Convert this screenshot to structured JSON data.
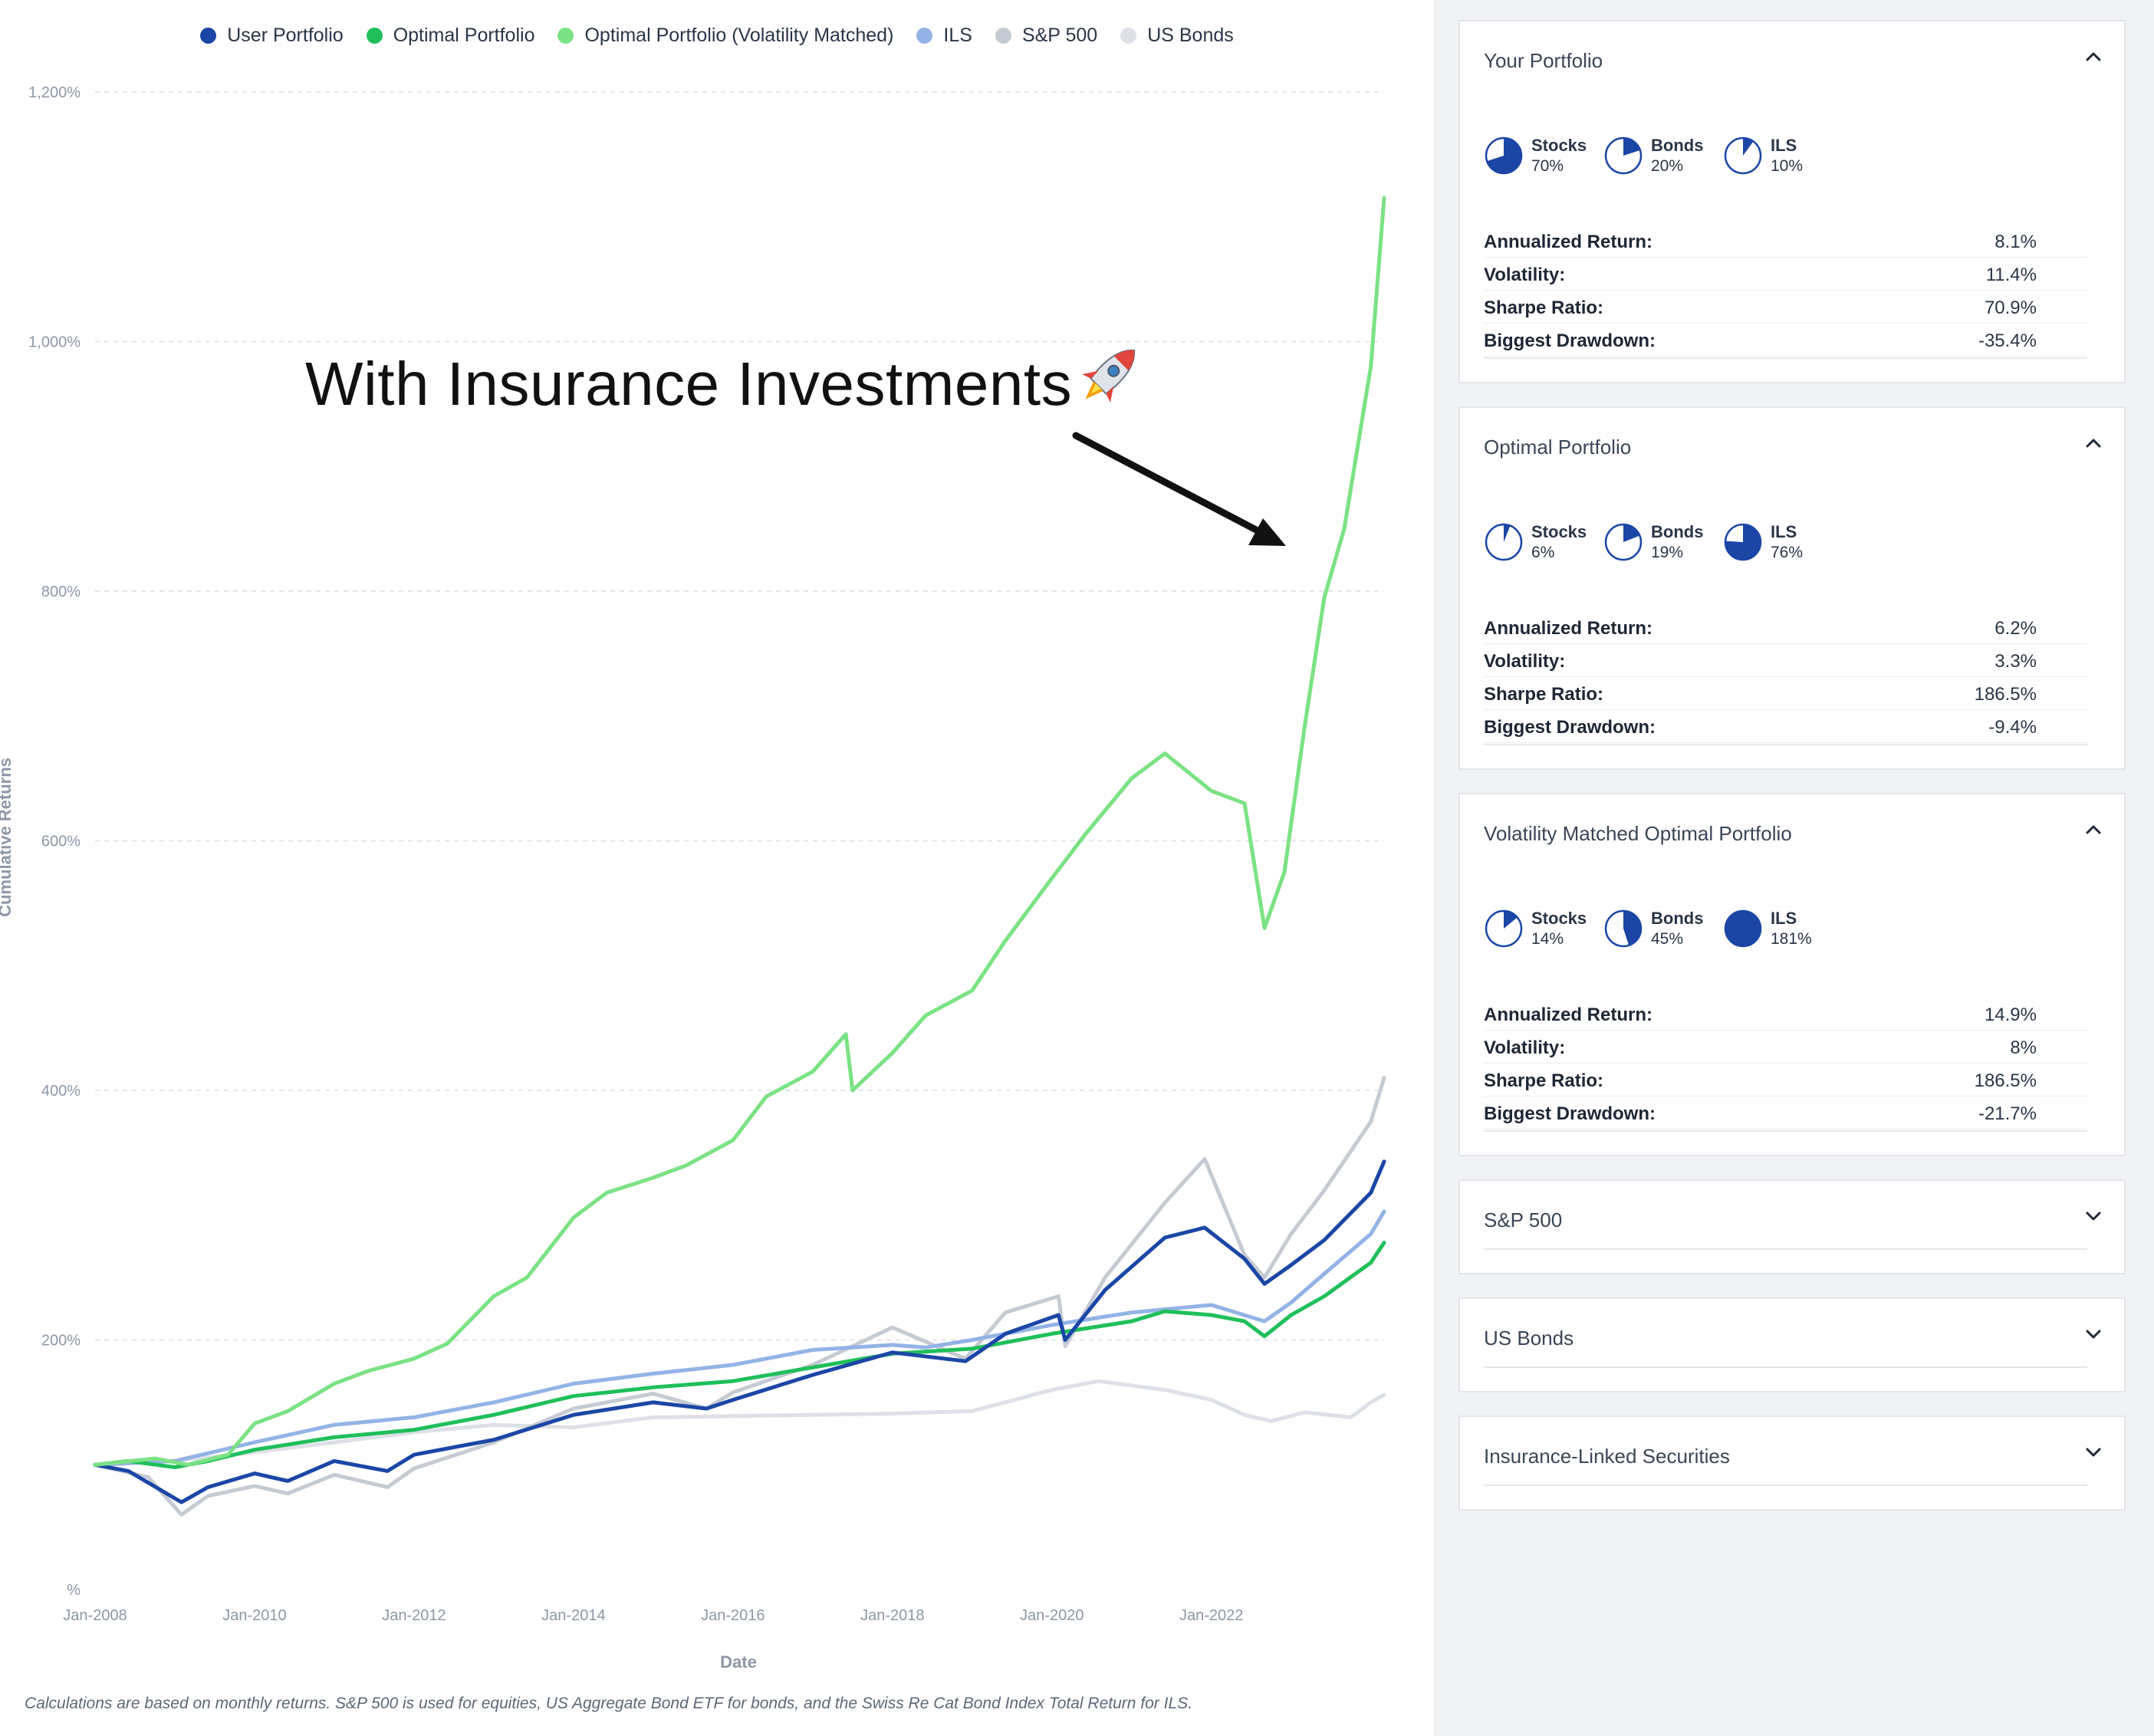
{
  "legend": [
    {
      "name": "User Portfolio",
      "color": "#1b46a6"
    },
    {
      "name": "Optimal Portfolio",
      "color": "#1fbf5a"
    },
    {
      "name": "Optimal Portfolio (Volatility Matched)",
      "color": "#7be284"
    },
    {
      "name": "ILS",
      "color": "#93b3e6"
    },
    {
      "name": "S&P 500",
      "color": "#c5cad3"
    },
    {
      "name": "US Bonds",
      "color": "#dde0e6"
    }
  ],
  "annotation": {
    "text": "With Insurance Investments",
    "icon": "rocket-icon"
  },
  "footnote": "Calculations are based on monthly returns. S&P 500 is used for equities, US Aggregate Bond ETF for bonds, and the Swiss Re Cat Bond Index Total Return for ILS.",
  "chart_data": {
    "type": "line",
    "xlabel": "Date",
    "ylabel": "Cumulative Returns",
    "ylim": [
      0,
      1200
    ],
    "xlim": [
      "2008-01",
      "2024-03"
    ],
    "y_ticks": [
      0,
      200,
      400,
      600,
      800,
      1000,
      1200
    ],
    "y_tick_labels": [
      "%",
      "200%",
      "400%",
      "600%",
      "800%",
      "1,000%",
      "1,200%"
    ],
    "x_tick_labels": [
      "Jan-2008",
      "Jan-2010",
      "Jan-2012",
      "Jan-2014",
      "Jan-2016",
      "Jan-2018",
      "Jan-2020",
      "Jan-2022"
    ],
    "grid": "horizontal dashed",
    "legend_position": "top",
    "series": [
      {
        "name": "Optimal Portfolio (Volatility Matched)",
        "color": "#7be284",
        "points": [
          [
            "2008-01",
            100
          ],
          [
            "2008-10",
            105
          ],
          [
            "2009-03",
            100
          ],
          [
            "2009-09",
            108
          ],
          [
            "2010-01",
            133
          ],
          [
            "2010-06",
            143
          ],
          [
            "2011-01",
            165
          ],
          [
            "2011-06",
            175
          ],
          [
            "2012-01",
            185
          ],
          [
            "2012-06",
            197
          ],
          [
            "2013-01",
            235
          ],
          [
            "2013-06",
            250
          ],
          [
            "2014-01",
            298
          ],
          [
            "2014-06",
            318
          ],
          [
            "2015-01",
            330
          ],
          [
            "2015-06",
            340
          ],
          [
            "2016-01",
            360
          ],
          [
            "2016-06",
            395
          ],
          [
            "2017-01",
            415
          ],
          [
            "2017-06",
            445
          ],
          [
            "2017-07",
            400
          ],
          [
            "2018-01",
            430
          ],
          [
            "2018-06",
            460
          ],
          [
            "2019-01",
            480
          ],
          [
            "2019-06",
            520
          ],
          [
            "2020-01",
            570
          ],
          [
            "2020-06",
            605
          ],
          [
            "2021-01",
            650
          ],
          [
            "2021-06",
            670
          ],
          [
            "2022-01",
            640
          ],
          [
            "2022-06",
            630
          ],
          [
            "2022-09",
            530
          ],
          [
            "2022-12",
            575
          ],
          [
            "2023-03",
            690
          ],
          [
            "2023-06",
            795
          ],
          [
            "2023-09",
            850
          ],
          [
            "2024-01",
            980
          ],
          [
            "2024-03",
            1115
          ]
        ]
      },
      {
        "name": "Optimal Portfolio",
        "color": "#1fbf5a",
        "points": [
          [
            "2008-01",
            100
          ],
          [
            "2008-06",
            103
          ],
          [
            "2009-01",
            98
          ],
          [
            "2009-06",
            103
          ],
          [
            "2010-01",
            112
          ],
          [
            "2011-01",
            122
          ],
          [
            "2012-01",
            128
          ],
          [
            "2013-01",
            140
          ],
          [
            "2014-01",
            155
          ],
          [
            "2015-01",
            162
          ],
          [
            "2016-01",
            167
          ],
          [
            "2017-01",
            178
          ],
          [
            "2018-01",
            189
          ],
          [
            "2019-01",
            193
          ],
          [
            "2020-01",
            205
          ],
          [
            "2021-01",
            215
          ],
          [
            "2021-06",
            223
          ],
          [
            "2022-01",
            220
          ],
          [
            "2022-06",
            215
          ],
          [
            "2022-09",
            203
          ],
          [
            "2023-01",
            220
          ],
          [
            "2023-06",
            235
          ],
          [
            "2024-01",
            262
          ],
          [
            "2024-03",
            278
          ]
        ]
      },
      {
        "name": "ILS",
        "color": "#93b3e6",
        "points": [
          [
            "2008-01",
            100
          ],
          [
            "2009-01",
            103
          ],
          [
            "2010-01",
            118
          ],
          [
            "2011-01",
            132
          ],
          [
            "2012-01",
            138
          ],
          [
            "2013-01",
            150
          ],
          [
            "2014-01",
            165
          ],
          [
            "2015-01",
            173
          ],
          [
            "2016-01",
            180
          ],
          [
            "2017-01",
            192
          ],
          [
            "2018-01",
            196
          ],
          [
            "2018-06",
            194
          ],
          [
            "2019-01",
            200
          ],
          [
            "2020-01",
            212
          ],
          [
            "2021-01",
            222
          ],
          [
            "2022-01",
            228
          ],
          [
            "2022-09",
            215
          ],
          [
            "2023-01",
            230
          ],
          [
            "2023-06",
            253
          ],
          [
            "2024-01",
            285
          ],
          [
            "2024-03",
            303
          ]
        ]
      },
      {
        "name": "User Portfolio",
        "color": "#1b46a6",
        "points": [
          [
            "2008-01",
            100
          ],
          [
            "2008-06",
            95
          ],
          [
            "2009-02",
            70
          ],
          [
            "2009-06",
            82
          ],
          [
            "2010-01",
            93
          ],
          [
            "2010-06",
            87
          ],
          [
            "2011-01",
            103
          ],
          [
            "2011-09",
            95
          ],
          [
            "2012-01",
            108
          ],
          [
            "2013-01",
            120
          ],
          [
            "2014-01",
            140
          ],
          [
            "2015-01",
            150
          ],
          [
            "2015-09",
            145
          ],
          [
            "2016-01",
            152
          ],
          [
            "2017-01",
            172
          ],
          [
            "2018-01",
            190
          ],
          [
            "2018-12",
            183
          ],
          [
            "2019-06",
            205
          ],
          [
            "2020-02",
            220
          ],
          [
            "2020-03",
            200
          ],
          [
            "2020-09",
            240
          ],
          [
            "2021-06",
            282
          ],
          [
            "2021-12",
            290
          ],
          [
            "2022-06",
            265
          ],
          [
            "2022-09",
            245
          ],
          [
            "2023-01",
            260
          ],
          [
            "2023-06",
            280
          ],
          [
            "2024-01",
            318
          ],
          [
            "2024-03",
            343
          ]
        ]
      },
      {
        "name": "S&P 500",
        "color": "#c5cad3",
        "points": [
          [
            "2008-01",
            100
          ],
          [
            "2008-09",
            90
          ],
          [
            "2009-02",
            60
          ],
          [
            "2009-06",
            75
          ],
          [
            "2010-01",
            83
          ],
          [
            "2010-06",
            77
          ],
          [
            "2011-01",
            92
          ],
          [
            "2011-09",
            82
          ],
          [
            "2012-01",
            97
          ],
          [
            "2013-01",
            118
          ],
          [
            "2014-01",
            145
          ],
          [
            "2015-01",
            157
          ],
          [
            "2015-09",
            145
          ],
          [
            "2016-01",
            158
          ],
          [
            "2017-01",
            180
          ],
          [
            "2018-01",
            210
          ],
          [
            "2018-12",
            185
          ],
          [
            "2019-06",
            222
          ],
          [
            "2020-02",
            235
          ],
          [
            "2020-03",
            195
          ],
          [
            "2020-09",
            250
          ],
          [
            "2021-06",
            310
          ],
          [
            "2021-12",
            345
          ],
          [
            "2022-06",
            268
          ],
          [
            "2022-09",
            250
          ],
          [
            "2023-01",
            285
          ],
          [
            "2023-06",
            320
          ],
          [
            "2024-01",
            375
          ],
          [
            "2024-03",
            410
          ]
        ]
      },
      {
        "name": "US Bonds",
        "color": "#dde0e6",
        "points": [
          [
            "2008-01",
            100
          ],
          [
            "2009-01",
            103
          ],
          [
            "2010-01",
            110
          ],
          [
            "2011-01",
            118
          ],
          [
            "2012-01",
            126
          ],
          [
            "2013-01",
            132
          ],
          [
            "2014-01",
            130
          ],
          [
            "2015-01",
            138
          ],
          [
            "2016-01",
            139
          ],
          [
            "2017-01",
            140
          ],
          [
            "2018-01",
            141
          ],
          [
            "2019-01",
            143
          ],
          [
            "2020-01",
            160
          ],
          [
            "2020-08",
            167
          ],
          [
            "2021-06",
            160
          ],
          [
            "2022-01",
            152
          ],
          [
            "2022-06",
            140
          ],
          [
            "2022-10",
            135
          ],
          [
            "2023-03",
            142
          ],
          [
            "2023-10",
            138
          ],
          [
            "2024-01",
            150
          ],
          [
            "2024-03",
            156
          ]
        ]
      }
    ]
  },
  "panel": {
    "cards": [
      {
        "title": "Your Portfolio",
        "expanded": true,
        "allocations": [
          {
            "name": "Stocks",
            "pct": "70%",
            "value": 70
          },
          {
            "name": "Bonds",
            "pct": "20%",
            "value": 20
          },
          {
            "name": "ILS",
            "pct": "10%",
            "value": 10
          }
        ],
        "metrics": [
          {
            "label": "Annualized Return:",
            "value": "8.1%"
          },
          {
            "label": "Volatility:",
            "value": "11.4%"
          },
          {
            "label": "Sharpe Ratio:",
            "value": "70.9%"
          },
          {
            "label": "Biggest Drawdown:",
            "value": "-35.4%"
          }
        ]
      },
      {
        "title": "Optimal Portfolio",
        "expanded": true,
        "allocations": [
          {
            "name": "Stocks",
            "pct": "6%",
            "value": 6
          },
          {
            "name": "Bonds",
            "pct": "19%",
            "value": 19
          },
          {
            "name": "ILS",
            "pct": "76%",
            "value": 76
          }
        ],
        "metrics": [
          {
            "label": "Annualized Return:",
            "value": "6.2%"
          },
          {
            "label": "Volatility:",
            "value": "3.3%"
          },
          {
            "label": "Sharpe Ratio:",
            "value": "186.5%"
          },
          {
            "label": "Biggest Drawdown:",
            "value": "-9.4%"
          }
        ]
      },
      {
        "title": "Volatility Matched Optimal Portfolio",
        "expanded": true,
        "allocations": [
          {
            "name": "Stocks",
            "pct": "14%",
            "value": 14
          },
          {
            "name": "Bonds",
            "pct": "45%",
            "value": 45
          },
          {
            "name": "ILS",
            "pct": "181%",
            "value": 181
          }
        ],
        "metrics": [
          {
            "label": "Annualized Return:",
            "value": "14.9%"
          },
          {
            "label": "Volatility:",
            "value": "8%"
          },
          {
            "label": "Sharpe Ratio:",
            "value": "186.5%"
          },
          {
            "label": "Biggest Drawdown:",
            "value": "-21.7%"
          }
        ]
      },
      {
        "title": "S&P 500",
        "expanded": false
      },
      {
        "title": "US Bonds",
        "expanded": false
      },
      {
        "title": "Insurance-Linked Securities",
        "expanded": false
      }
    ]
  }
}
